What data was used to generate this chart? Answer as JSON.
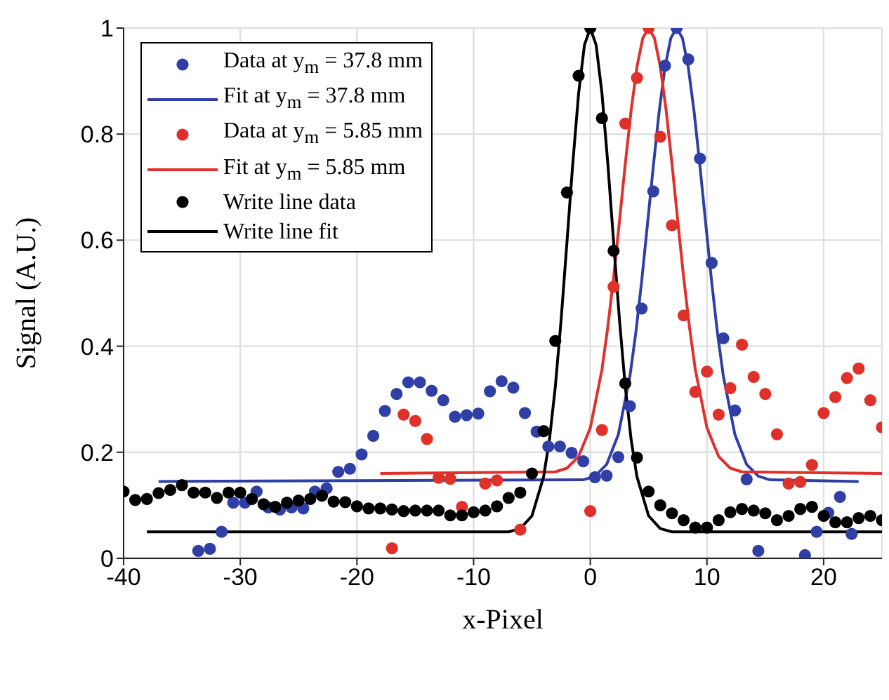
{
  "chart_data": {
    "type": "scatter",
    "xlabel": "x-Pixel",
    "ylabel": "Signal (A.U.)",
    "xlim": [
      -40,
      25
    ],
    "xticks": [
      -40,
      -30,
      -20,
      -10,
      0,
      10,
      20
    ],
    "ylim": [
      0,
      1
    ],
    "yticks": [
      0,
      0.2,
      0.4,
      0.6,
      0.8,
      1
    ],
    "grid": true,
    "legend": "top left",
    "line_style": "solid",
    "series": [
      {
        "name": "Data at y$_{m}$ = 37.8 mm",
        "marker": "circle",
        "color": "#2f3fa5",
        "x": [
          -33.6,
          -32.6,
          -31.6,
          -30.6,
          -29.6,
          -28.6,
          -27.6,
          -26.6,
          -25.6,
          -24.6,
          -23.6,
          -22.6,
          -21.6,
          -20.6,
          -19.6,
          -18.6,
          -17.6,
          -16.6,
          -15.6,
          -14.6,
          -13.6,
          -12.6,
          -11.6,
          -10.6,
          -9.6,
          -8.6,
          -7.6,
          -6.6,
          -5.6,
          -4.6,
          -3.6,
          -2.6,
          -1.6,
          -0.6,
          0.4,
          1.4,
          2.4,
          3.4,
          4.4,
          5.4,
          6.4,
          7.4,
          8.4,
          9.4,
          10.4,
          11.4,
          12.4,
          13.4,
          14.4,
          18.4,
          19.4,
          20.4,
          21.4,
          22.4
        ],
        "values": [
          0.014,
          0.018,
          0.05,
          0.105,
          0.105,
          0.126,
          0.096,
          0.092,
          0.096,
          0.094,
          0.126,
          0.132,
          0.163,
          0.169,
          0.196,
          0.231,
          0.278,
          0.31,
          0.332,
          0.332,
          0.316,
          0.298,
          0.267,
          0.27,
          0.273,
          0.315,
          0.334,
          0.322,
          0.274,
          0.239,
          0.211,
          0.211,
          0.199,
          0.183,
          0.153,
          0.156,
          0.191,
          0.287,
          0.471,
          0.692,
          0.929,
          1.0,
          0.941,
          0.754,
          0.557,
          0.415,
          0.279,
          0.149,
          0.014,
          0.006,
          0.05,
          0.086,
          0.116,
          0.046
        ]
      },
      {
        "name": "Fit at y$_{m}$ = 37.8 mm",
        "type": "line",
        "marker": "none",
        "color": "#2f3fa5",
        "x": [
          -37,
          -0.6,
          0.4,
          1.4,
          2.4,
          3.4,
          3.9,
          4.4,
          4.9,
          5.4,
          5.9,
          6.4,
          6.9,
          7.4,
          7.9,
          8.4,
          8.9,
          9.4,
          9.9,
          10.4,
          10.9,
          11.4,
          12.4,
          13.4,
          14.4,
          15.4,
          23
        ],
        "values": [
          0.145,
          0.148,
          0.155,
          0.177,
          0.233,
          0.344,
          0.425,
          0.522,
          0.63,
          0.739,
          0.842,
          0.926,
          0.981,
          1.0,
          0.981,
          0.926,
          0.842,
          0.739,
          0.63,
          0.522,
          0.425,
          0.344,
          0.233,
          0.177,
          0.155,
          0.148,
          0.145
        ]
      },
      {
        "name": "Data at y$_{m}$ = 5.85 mm",
        "marker": "circle",
        "color": "#e0302a",
        "x": [
          -17,
          -16,
          -15,
          -14,
          -13,
          -12,
          -11,
          -9,
          -8,
          -6,
          0,
          1,
          2,
          3,
          4,
          5,
          6,
          7,
          8,
          9,
          10,
          11,
          12,
          13,
          14,
          15,
          16,
          17,
          18,
          19,
          20,
          21,
          22,
          23,
          24,
          25
        ],
        "values": [
          0.019,
          0.271,
          0.259,
          0.225,
          0.152,
          0.15,
          0.097,
          0.141,
          0.147,
          0.054,
          0.089,
          0.242,
          0.512,
          0.82,
          0.906,
          1.0,
          0.795,
          0.628,
          0.458,
          0.314,
          0.352,
          0.271,
          0.321,
          0.403,
          0.342,
          0.31,
          0.234,
          0.141,
          0.144,
          0.176,
          0.274,
          0.304,
          0.34,
          0.358,
          0.298,
          0.247
        ]
      },
      {
        "name": "Fit at y$_{m}$ = 5.85 mm",
        "type": "line",
        "marker": "none",
        "color": "#e0302a",
        "x": [
          -18,
          -3,
          -2,
          -1,
          0,
          1,
          1.5,
          2,
          2.5,
          3,
          3.5,
          4,
          4.5,
          5,
          5.5,
          6,
          6.5,
          7,
          7.5,
          8,
          8.5,
          9,
          10,
          11,
          12,
          13,
          25
        ],
        "values": [
          0.16,
          0.163,
          0.17,
          0.192,
          0.246,
          0.356,
          0.436,
          0.53,
          0.636,
          0.744,
          0.845,
          0.927,
          0.981,
          1.0,
          0.981,
          0.927,
          0.845,
          0.744,
          0.636,
          0.53,
          0.436,
          0.356,
          0.246,
          0.192,
          0.17,
          0.163,
          0.16
        ]
      },
      {
        "name": "Write line data",
        "marker": "circle",
        "color": "#000000",
        "x": [
          -40,
          -39,
          -38,
          -37,
          -36,
          -35,
          -34,
          -33,
          -32,
          -31,
          -30,
          -29,
          -28,
          -27,
          -26,
          -25,
          -24,
          -23,
          -22,
          -21,
          -20,
          -19,
          -18,
          -17,
          -16,
          -15,
          -14,
          -13,
          -12,
          -11,
          -10,
          -9,
          -8,
          -7,
          -6,
          -5,
          -4,
          -3,
          -2,
          -1,
          0,
          1,
          2,
          3,
          4,
          5,
          6,
          7,
          8,
          9,
          10,
          11,
          12,
          13,
          14,
          15,
          16,
          17,
          18,
          19,
          20,
          21,
          22,
          23,
          24,
          25
        ],
        "values": [
          0.126,
          0.11,
          0.112,
          0.123,
          0.129,
          0.138,
          0.124,
          0.124,
          0.114,
          0.124,
          0.124,
          0.112,
          0.102,
          0.097,
          0.105,
          0.109,
          0.112,
          0.118,
          0.107,
          0.106,
          0.098,
          0.094,
          0.094,
          0.092,
          0.089,
          0.09,
          0.09,
          0.09,
          0.081,
          0.081,
          0.087,
          0.09,
          0.098,
          0.114,
          0.124,
          0.16,
          0.24,
          0.41,
          0.69,
          0.91,
          1.0,
          0.83,
          0.58,
          0.33,
          0.19,
          0.126,
          0.1,
          0.085,
          0.072,
          0.058,
          0.058,
          0.072,
          0.087,
          0.093,
          0.09,
          0.085,
          0.072,
          0.08,
          0.093,
          0.097,
          0.08,
          0.068,
          0.068,
          0.076,
          0.08,
          0.072
        ]
      },
      {
        "name": "Write line fit",
        "type": "line",
        "marker": "none",
        "color": "#000000",
        "x": [
          -38,
          -7,
          -6,
          -5,
          -4,
          -3.5,
          -3,
          -2.5,
          -2,
          -1.5,
          -1,
          -0.5,
          0,
          0.5,
          1,
          1.5,
          2,
          2.5,
          3,
          3.5,
          4,
          5,
          6,
          7,
          25
        ],
        "values": [
          0.05,
          0.05,
          0.056,
          0.08,
          0.154,
          0.224,
          0.323,
          0.45,
          0.596,
          0.745,
          0.877,
          0.968,
          1.0,
          0.968,
          0.877,
          0.745,
          0.596,
          0.45,
          0.323,
          0.224,
          0.154,
          0.08,
          0.056,
          0.05,
          0.05
        ]
      }
    ]
  }
}
